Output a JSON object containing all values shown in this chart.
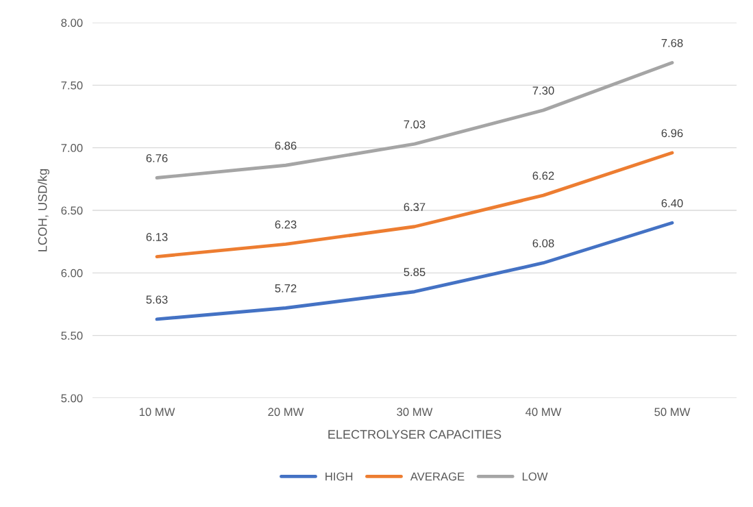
{
  "chart_data": {
    "type": "line",
    "xlabel": "ELECTROLYSER CAPACITIES",
    "ylabel": "LCOH, USD/kg",
    "categories": [
      "10 MW",
      "20 MW",
      "30 MW",
      "40 MW",
      "50 MW"
    ],
    "series": [
      {
        "name": "HIGH",
        "color": "#4472c4",
        "values": [
          5.63,
          5.72,
          5.85,
          6.08,
          6.4
        ],
        "value_labels": [
          "5.63",
          "5.72",
          "5.85",
          "6.08",
          "6.40"
        ]
      },
      {
        "name": "AVERAGE",
        "color": "#ed7d31",
        "values": [
          6.13,
          6.23,
          6.37,
          6.62,
          6.96
        ],
        "value_labels": [
          "6.13",
          "6.23",
          "6.37",
          "6.62",
          "6.96"
        ]
      },
      {
        "name": "LOW",
        "color": "#a5a5a5",
        "values": [
          6.76,
          6.86,
          7.03,
          7.3,
          7.68
        ],
        "value_labels": [
          "6.76",
          "6.86",
          "7.03",
          "7.30",
          "7.68"
        ]
      }
    ],
    "ylim": [
      5.0,
      8.0
    ],
    "yticks": [
      {
        "value": 5.0,
        "label": "5.00"
      },
      {
        "value": 5.5,
        "label": "5.50"
      },
      {
        "value": 6.0,
        "label": "6.00"
      },
      {
        "value": 6.5,
        "label": "6.50"
      },
      {
        "value": 7.0,
        "label": "7.00"
      },
      {
        "value": 7.5,
        "label": "7.50"
      },
      {
        "value": 8.0,
        "label": "8.00"
      }
    ],
    "grid": "y",
    "legend": "bottom",
    "marker": "none",
    "line_style": "solid"
  }
}
